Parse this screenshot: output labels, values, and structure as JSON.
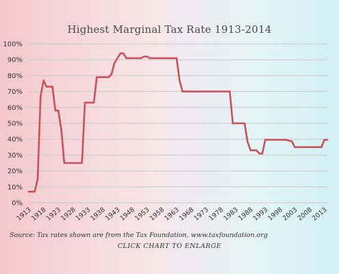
{
  "chart_data": {
    "type": "line",
    "title": "Highest Marginal Tax Rate 1913-2014",
    "xlabel": "",
    "ylabel": "",
    "xlim": [
      1913,
      2014
    ],
    "ylim": [
      0,
      100
    ],
    "y_ticks": [
      0,
      10,
      20,
      30,
      40,
      50,
      60,
      70,
      80,
      90,
      100
    ],
    "y_tick_labels": [
      "0%",
      "10%",
      "20%",
      "30%",
      "40%",
      "50%",
      "60%",
      "70%",
      "80%",
      "90%",
      "100%"
    ],
    "x_ticks": [
      1913,
      1918,
      1923,
      1928,
      1933,
      1938,
      1943,
      1948,
      1953,
      1958,
      1963,
      1968,
      1973,
      1978,
      1983,
      1988,
      1993,
      1998,
      2003,
      2008,
      2013
    ],
    "x_tick_labels": [
      "1913",
      "1918",
      "1923",
      "1928",
      "1933",
      "1938",
      "1943",
      "1948",
      "1953",
      "1958",
      "1963",
      "1968",
      "1973",
      "1978",
      "1983",
      "1988",
      "1993",
      "1998",
      "2003",
      "2008",
      "2013"
    ],
    "grid": true,
    "legend": "none",
    "line_color": "#c8525a",
    "series": [
      {
        "x": [
          1913,
          1915,
          1916,
          1917,
          1918,
          1919,
          1921,
          1922,
          1923,
          1924,
          1925,
          1931,
          1932,
          1935,
          1936,
          1940,
          1941,
          1942,
          1944,
          1945,
          1946,
          1950,
          1951,
          1952,
          1953,
          1954,
          1963,
          1964,
          1965,
          1981,
          1982,
          1986,
          1987,
          1988,
          1990,
          1991,
          1992,
          1993,
          2000,
          2001,
          2002,
          2003,
          2012,
          2013,
          2014
        ],
        "y": [
          7,
          7,
          15,
          67,
          77,
          73,
          73,
          58,
          58,
          46,
          25,
          25,
          63,
          63,
          79,
          79,
          81,
          88,
          94,
          94,
          91,
          91,
          91,
          92,
          92,
          91,
          91,
          77,
          70,
          70,
          50,
          50,
          38.5,
          33,
          33,
          31,
          31,
          39.6,
          39.6,
          39.1,
          38.6,
          35,
          35,
          39.6,
          39.6
        ]
      }
    ]
  },
  "source_note": "Source: Tax rates shown are from the Tax Foundation, www.taxfoundation.org",
  "enlarge_label": "CLICK CHART TO ENLARGE",
  "colors": {
    "line": "#c8525a",
    "grid": "#c9c9c9",
    "text": "#333333"
  }
}
